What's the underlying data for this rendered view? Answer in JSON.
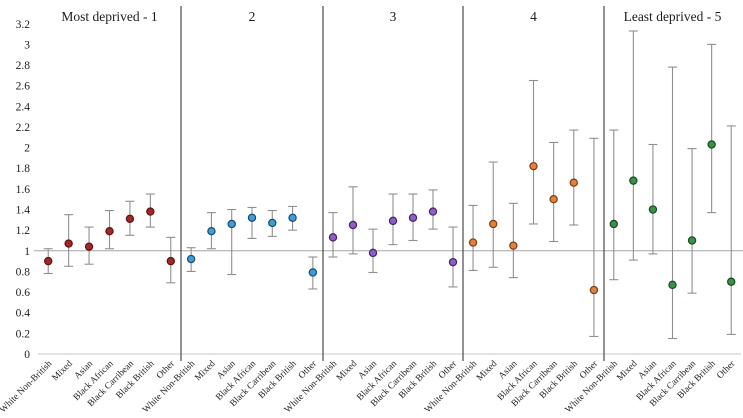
{
  "chart_data": {
    "type": "scatter",
    "title": "",
    "xlabel": "",
    "ylabel": "",
    "ylim": [
      0,
      3.2
    ],
    "ytick_step": 0.2,
    "yticks": [
      0,
      0.2,
      0.4,
      0.6,
      0.8,
      1,
      1.2,
      1.4,
      1.6,
      1.8,
      2,
      2.2,
      2.4,
      2.6,
      2.8,
      3,
      3.2
    ],
    "reference_line": 1,
    "grid": false,
    "legend": "none",
    "error_bar_color": "#8f8f8f",
    "reference_line_color": "#a6a6a6",
    "axis_line_color": "#c9c9c9",
    "divider_color": "#4a4a4a",
    "categories": [
      "White Non-British",
      "Mixed",
      "Asian",
      "Black African",
      "Black Carribean",
      "Black British",
      "Other"
    ],
    "groups": [
      {
        "label": "Most deprived - 1",
        "fill": "#a32727",
        "stroke": "#5e1212",
        "points": [
          {
            "category": "White Non-British",
            "value": 0.9,
            "ci_low": 0.78,
            "ci_high": 1.02
          },
          {
            "category": "Mixed",
            "value": 1.07,
            "ci_low": 0.85,
            "ci_high": 1.35
          },
          {
            "category": "Asian",
            "value": 1.04,
            "ci_low": 0.87,
            "ci_high": 1.23
          },
          {
            "category": "Black African",
            "value": 1.19,
            "ci_low": 1.02,
            "ci_high": 1.39
          },
          {
            "category": "Black Carribean",
            "value": 1.31,
            "ci_low": 1.15,
            "ci_high": 1.48
          },
          {
            "category": "Black British",
            "value": 1.38,
            "ci_low": 1.23,
            "ci_high": 1.55
          },
          {
            "category": "Other",
            "value": 0.9,
            "ci_low": 0.69,
            "ci_high": 1.13
          }
        ]
      },
      {
        "label": "2",
        "fill": "#3d9fd6",
        "stroke": "#174a6e",
        "points": [
          {
            "category": "White Non-British",
            "value": 0.92,
            "ci_low": 0.8,
            "ci_high": 1.03
          },
          {
            "category": "Mixed",
            "value": 1.19,
            "ci_low": 1.02,
            "ci_high": 1.37
          },
          {
            "category": "Asian",
            "value": 1.26,
            "ci_low": 0.77,
            "ci_high": 1.4
          },
          {
            "category": "Black African",
            "value": 1.32,
            "ci_low": 1.12,
            "ci_high": 1.42
          },
          {
            "category": "Black Carribean",
            "value": 1.27,
            "ci_low": 1.14,
            "ci_high": 1.39
          },
          {
            "category": "Black British",
            "value": 1.32,
            "ci_low": 1.2,
            "ci_high": 1.43
          },
          {
            "category": "Other",
            "value": 0.79,
            "ci_low": 0.63,
            "ci_high": 0.94
          }
        ]
      },
      {
        "label": "3",
        "fill": "#8d5fc4",
        "stroke": "#452468",
        "points": [
          {
            "category": "White Non-British",
            "value": 1.13,
            "ci_low": 0.94,
            "ci_high": 1.37
          },
          {
            "category": "Mixed",
            "value": 1.25,
            "ci_low": 0.97,
            "ci_high": 1.62
          },
          {
            "category": "Asian",
            "value": 0.98,
            "ci_low": 0.79,
            "ci_high": 1.21
          },
          {
            "category": "Black African",
            "value": 1.29,
            "ci_low": 1.06,
            "ci_high": 1.55
          },
          {
            "category": "Black Carribean",
            "value": 1.32,
            "ci_low": 1.1,
            "ci_high": 1.55
          },
          {
            "category": "Black British",
            "value": 1.38,
            "ci_low": 1.21,
            "ci_high": 1.59
          },
          {
            "category": "Other",
            "value": 0.89,
            "ci_low": 0.65,
            "ci_high": 1.23
          }
        ]
      },
      {
        "label": "4",
        "fill": "#e1813f",
        "stroke": "#7e3c0f",
        "points": [
          {
            "category": "White Non-British",
            "value": 1.08,
            "ci_low": 0.81,
            "ci_high": 1.44
          },
          {
            "category": "Mixed",
            "value": 1.26,
            "ci_low": 0.84,
            "ci_high": 1.86
          },
          {
            "category": "Asian",
            "value": 1.05,
            "ci_low": 0.74,
            "ci_high": 1.46
          },
          {
            "category": "Black African",
            "value": 1.82,
            "ci_low": 1.26,
            "ci_high": 2.65
          },
          {
            "category": "Black Carribean",
            "value": 1.5,
            "ci_low": 1.09,
            "ci_high": 2.05
          },
          {
            "category": "Black British",
            "value": 1.66,
            "ci_low": 1.25,
            "ci_high": 2.17
          },
          {
            "category": "Other",
            "value": 0.62,
            "ci_low": 0.17,
            "ci_high": 2.09
          }
        ]
      },
      {
        "label": "Least deprived - 5",
        "fill": "#3c8f4c",
        "stroke": "#174d1f",
        "points": [
          {
            "category": "White Non-British",
            "value": 1.26,
            "ci_low": 0.72,
            "ci_high": 2.17
          },
          {
            "category": "Mixed",
            "value": 1.68,
            "ci_low": 0.91,
            "ci_high": 3.13
          },
          {
            "category": "Asian",
            "value": 1.4,
            "ci_low": 0.97,
            "ci_high": 2.03
          },
          {
            "category": "Black African",
            "value": 0.67,
            "ci_low": 0.15,
            "ci_high": 2.78
          },
          {
            "category": "Black Carribean",
            "value": 1.1,
            "ci_low": 0.59,
            "ci_high": 1.99
          },
          {
            "category": "Black British",
            "value": 2.03,
            "ci_low": 1.37,
            "ci_high": 3.0
          },
          {
            "category": "Other",
            "value": 0.7,
            "ci_low": 0.19,
            "ci_high": 2.21
          }
        ]
      }
    ]
  }
}
